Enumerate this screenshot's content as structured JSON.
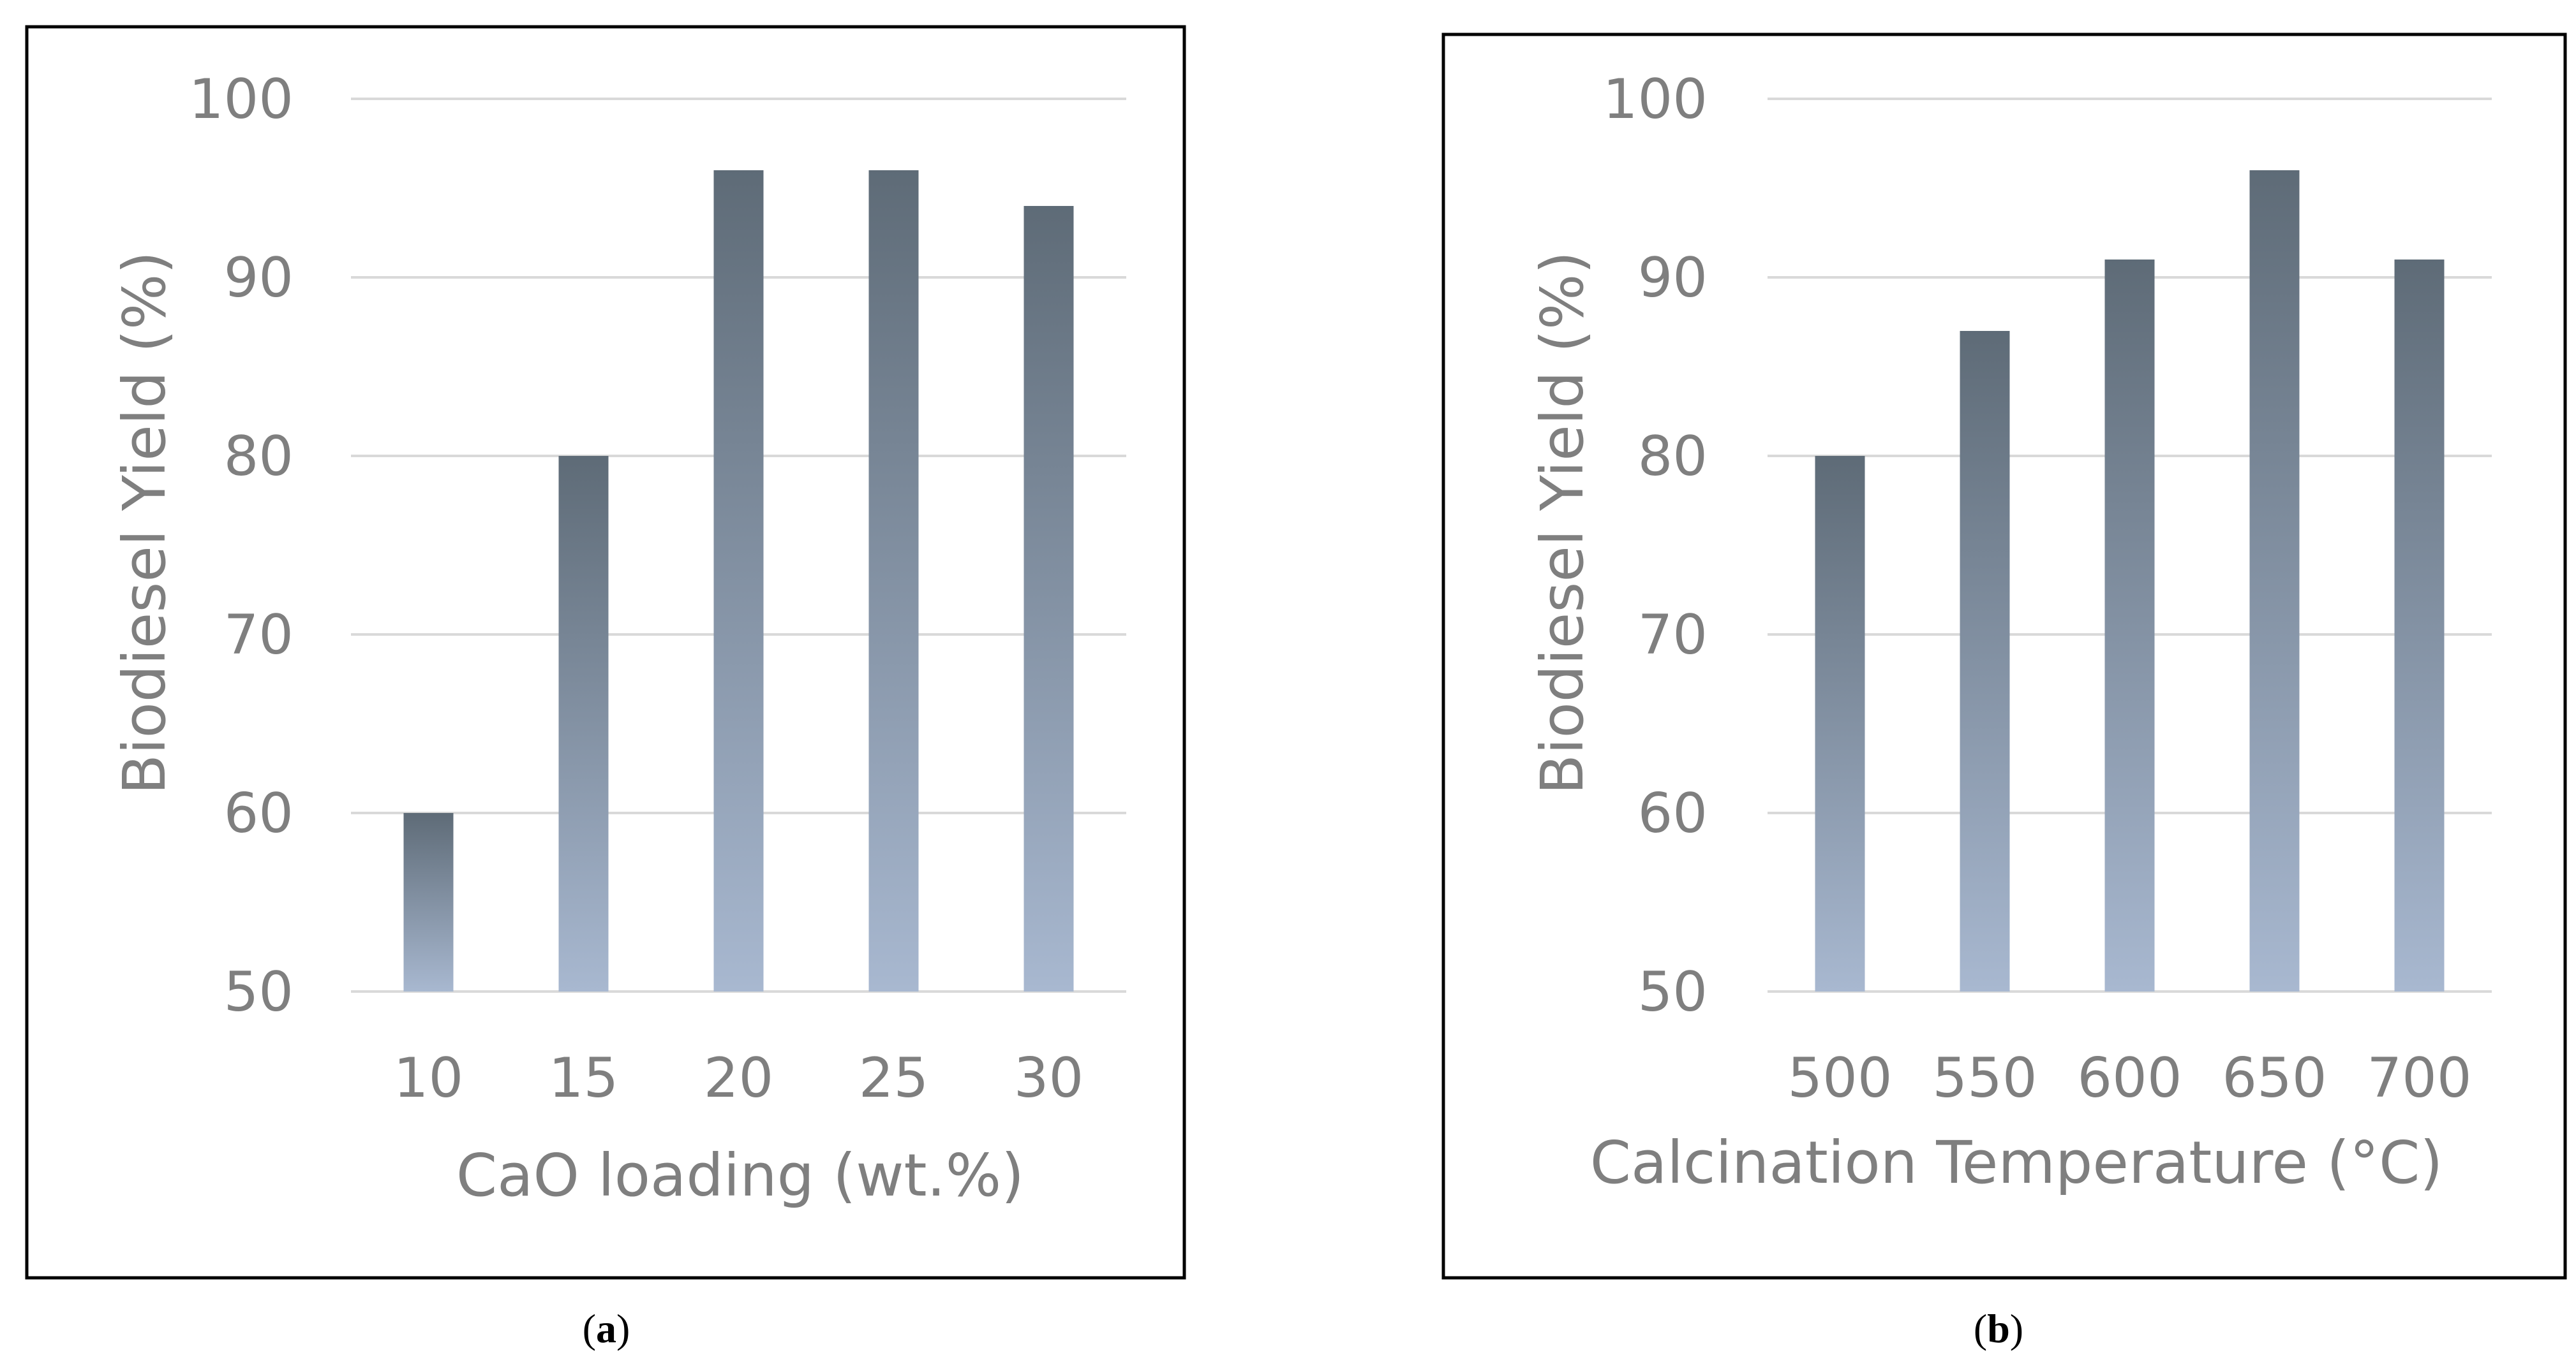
{
  "figure": {
    "panels": [
      {
        "caption_letter": "a"
      },
      {
        "caption_letter": "b"
      }
    ]
  },
  "colors": {
    "bar_top": "#5e6b77",
    "bar_bottom": "#a8b8d0",
    "grid": "#d9d9d9",
    "text": "#7f7f7f",
    "border": "#000000"
  },
  "chart_data": [
    {
      "type": "bar",
      "title": "",
      "xlabel": "CaO loading (wt.%)",
      "ylabel": "Biodiesel Yield (%)",
      "categories": [
        "10",
        "15",
        "20",
        "25",
        "30"
      ],
      "values": [
        60,
        80,
        96,
        96,
        94
      ],
      "ylim": [
        50,
        100
      ],
      "yticks": [
        "50",
        "60",
        "70",
        "80",
        "90",
        "100"
      ],
      "grid": true
    },
    {
      "type": "bar",
      "title": "",
      "xlabel": "Calcination Temperature (°C)",
      "ylabel": "Biodiesel Yield (%)",
      "categories": [
        "500",
        "550",
        "600",
        "650",
        "700"
      ],
      "values": [
        80,
        87,
        91,
        96,
        91
      ],
      "ylim": [
        50,
        100
      ],
      "yticks": [
        "50",
        "60",
        "70",
        "80",
        "90",
        "100"
      ],
      "grid": true
    }
  ]
}
